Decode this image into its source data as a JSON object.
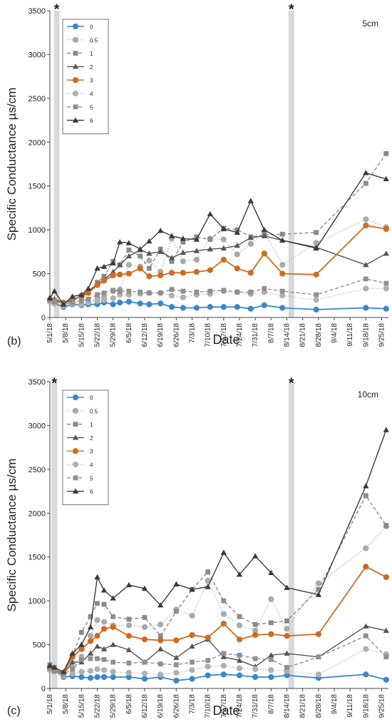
{
  "chart_data": [
    {
      "type": "line",
      "panel_label": "(b)",
      "depth_label": "5cm",
      "xlabel": "Date",
      "ylabel": "Specific Conductance µs/cm",
      "ylim": [
        0,
        3500
      ],
      "yticks": [
        "0",
        "500",
        "1000",
        "1500",
        "2000",
        "2500",
        "3000",
        "3500"
      ],
      "x_date_range": [
        "5/1/18",
        "9/28/18"
      ],
      "xticks": [
        "5/1/18",
        "5/8/18",
        "5/15/18",
        "5/22/18",
        "5/29/18",
        "6/5/18",
        "6/12/18",
        "6/19/18",
        "6/26/18",
        "7/3/18",
        "7/10/18",
        "7/17/18",
        "7/24/18",
        "7/31/18",
        "8/7/18",
        "8/14/18",
        "8/21/18",
        "8/28/18",
        "9/4/18",
        "9/11/18",
        "9/18/18",
        "9/25/18"
      ],
      "event_markers": [
        {
          "date": "5/4/18",
          "symbol": "*"
        },
        {
          "date": "8/16/18",
          "symbol": "*"
        }
      ],
      "legend_position": "top-left",
      "grid": false,
      "x": [
        "5/1/18",
        "5/3/18",
        "5/7/18",
        "5/11/18",
        "5/15/18",
        "5/18/18",
        "5/22/18",
        "5/25/18",
        "5/29/18",
        "6/1/18",
        "6/5/18",
        "6/10/18",
        "6/14/18",
        "6/19/18",
        "6/24/18",
        "6/29/18",
        "7/5/18",
        "7/11/18",
        "7/17/18",
        "7/23/18",
        "7/29/18",
        "8/4/18",
        "8/12/18",
        "8/27/18",
        "9/18/18",
        "9/27/18"
      ],
      "series": [
        {
          "name": "0",
          "color": "#3a87cc",
          "style": "solid",
          "marker": "circle",
          "values": [
            180,
            160,
            120,
            150,
            140,
            150,
            150,
            170,
            150,
            170,
            180,
            160,
            150,
            160,
            120,
            110,
            110,
            120,
            120,
            120,
            100,
            140,
            110,
            90,
            110,
            100
          ]
        },
        {
          "name": "0.5",
          "color": "#a9a9a9",
          "style": "dotted",
          "marker": "circle",
          "values": [
            190,
            170,
            130,
            180,
            150,
            170,
            220,
            230,
            300,
            320,
            600,
            580,
            650,
            520,
            900,
            640,
            660,
            900,
            890,
            720,
            840,
            980,
            600,
            850,
            1120,
            1030
          ]
        },
        {
          "name": "1",
          "color": "#8a8a8a",
          "style": "dashed",
          "marker": "square",
          "values": [
            200,
            190,
            160,
            200,
            250,
            280,
            400,
            470,
            640,
            600,
            770,
            700,
            560,
            780,
            640,
            860,
            920,
            890,
            1020,
            1000,
            920,
            940,
            950,
            970,
            1530,
            1870
          ]
        },
        {
          "name": "2",
          "color": "#555555",
          "style": "solid",
          "marker": "triangle",
          "values": [
            230,
            210,
            170,
            190,
            250,
            300,
            380,
            430,
            520,
            600,
            700,
            770,
            730,
            750,
            680,
            740,
            760,
            780,
            790,
            820,
            910,
            930,
            880,
            800,
            600,
            730
          ]
        },
        {
          "name": "3",
          "color": "#d06a1f",
          "style": "solid",
          "marker": "circle",
          "values": [
            200,
            190,
            170,
            210,
            240,
            280,
            370,
            420,
            480,
            490,
            500,
            560,
            470,
            480,
            510,
            510,
            520,
            540,
            660,
            560,
            510,
            730,
            500,
            490,
            1050,
            1010
          ]
        },
        {
          "name": "4",
          "color": "#b0b0b0",
          "style": "dotted",
          "marker": "circle",
          "values": [
            180,
            160,
            150,
            160,
            150,
            170,
            190,
            200,
            220,
            260,
            260,
            270,
            280,
            280,
            250,
            230,
            260,
            270,
            300,
            290,
            270,
            290,
            250,
            200,
            330,
            330
          ]
        },
        {
          "name": "5",
          "color": "#909090",
          "style": "dashed",
          "marker": "square",
          "values": [
            200,
            180,
            150,
            170,
            190,
            210,
            260,
            280,
            310,
            300,
            300,
            290,
            280,
            280,
            320,
            300,
            290,
            300,
            310,
            290,
            290,
            330,
            300,
            260,
            440,
            390
          ]
        },
        {
          "name": "6",
          "color": "#3a3a3a",
          "style": "solid",
          "marker": "triangle",
          "values": [
            220,
            300,
            150,
            240,
            260,
            330,
            560,
            580,
            620,
            860,
            850,
            780,
            870,
            990,
            930,
            900,
            890,
            1180,
            1010,
            970,
            1330,
            1000,
            880,
            790,
            1650,
            1580
          ]
        }
      ]
    },
    {
      "type": "line",
      "panel_label": "(c)",
      "depth_label": "10cm",
      "xlabel": "Date",
      "ylabel": "Specific Conductance µs/cm",
      "ylim": [
        0,
        3500
      ],
      "yticks": [
        "0",
        "500",
        "1000",
        "1500",
        "2000",
        "2500",
        "3000",
        "3500"
      ],
      "x_date_range": [
        "5/1/18",
        "9/28/18"
      ],
      "xticks": [
        "5/1/18",
        "5/8/18",
        "5/15/18",
        "5/22/18",
        "5/29/18",
        "6/5/18",
        "6/12/18",
        "6/19/18",
        "6/26/18",
        "7/3/18",
        "7/10/18",
        "7/17/18",
        "7/24/18",
        "7/31/18",
        "8/7/18",
        "8/14/18",
        "8/21/18",
        "8/28/18",
        "9/4/18",
        "9/11/18",
        "9/18/18",
        "9/25/18"
      ],
      "event_markers": [
        {
          "date": "5/3/18",
          "symbol": "*"
        },
        {
          "date": "8/16/18",
          "symbol": "*"
        }
      ],
      "legend_position": "top-left",
      "grid": false,
      "x": [
        "5/1/18",
        "5/3/18",
        "5/7/18",
        "5/11/18",
        "5/15/18",
        "5/19/18",
        "5/22/18",
        "5/25/18",
        "5/29/18",
        "6/5/18",
        "6/12/18",
        "6/19/18",
        "6/26/18",
        "7/3/18",
        "7/10/18",
        "7/17/18",
        "7/24/18",
        "7/31/18",
        "8/7/18",
        "8/14/18",
        "8/28/18",
        "9/18/18",
        "9/27/18"
      ],
      "series": [
        {
          "name": "0",
          "color": "#3a87cc",
          "style": "solid",
          "marker": "circle",
          "values": [
            230,
            210,
            130,
            140,
            130,
            120,
            130,
            130,
            130,
            130,
            110,
            130,
            90,
            110,
            150,
            160,
            150,
            130,
            130,
            150,
            120,
            160,
            100
          ]
        },
        {
          "name": "0.5",
          "color": "#a9a9a9",
          "style": "dotted",
          "marker": "circle",
          "values": [
            250,
            220,
            140,
            240,
            360,
            600,
            780,
            760,
            720,
            720,
            700,
            730,
            900,
            830,
            1230,
            850,
            720,
            660,
            1020,
            680,
            1200,
            1600,
            1850
          ]
        },
        {
          "name": "1",
          "color": "#8a8a8a",
          "style": "dashed",
          "marker": "square",
          "values": [
            270,
            240,
            180,
            380,
            640,
            820,
            970,
            960,
            820,
            790,
            810,
            600,
            880,
            1130,
            1330,
            1000,
            820,
            730,
            750,
            770,
            1130,
            2200,
            1860
          ]
        },
        {
          "name": "2",
          "color": "#555555",
          "style": "solid",
          "marker": "triangle",
          "values": [
            250,
            220,
            160,
            300,
            300,
            400,
            480,
            450,
            500,
            440,
            300,
            450,
            350,
            480,
            560,
            360,
            320,
            250,
            380,
            400,
            360,
            710,
            660
          ]
        },
        {
          "name": "3",
          "color": "#d06a1f",
          "style": "solid",
          "marker": "circle",
          "values": [
            240,
            220,
            170,
            360,
            450,
            540,
            600,
            680,
            700,
            600,
            560,
            550,
            550,
            610,
            580,
            740,
            560,
            610,
            620,
            600,
            620,
            1390,
            1270
          ]
        },
        {
          "name": "4",
          "color": "#b0b0b0",
          "style": "dotted",
          "marker": "circle",
          "values": [
            210,
            190,
            150,
            170,
            190,
            200,
            220,
            210,
            190,
            180,
            170,
            160,
            180,
            210,
            250,
            260,
            230,
            220,
            210,
            200,
            160,
            450,
            390
          ]
        },
        {
          "name": "5",
          "color": "#909090",
          "style": "dashed",
          "marker": "square",
          "values": [
            230,
            200,
            160,
            220,
            330,
            340,
            340,
            330,
            300,
            290,
            300,
            280,
            270,
            300,
            320,
            400,
            380,
            340,
            330,
            240,
            360,
            600,
            360
          ]
        },
        {
          "name": "6",
          "color": "#3a3a3a",
          "style": "solid",
          "marker": "triangle",
          "values": [
            260,
            240,
            190,
            400,
            500,
            700,
            1270,
            1120,
            1030,
            1180,
            1140,
            950,
            1190,
            1130,
            1160,
            1550,
            1300,
            1510,
            1320,
            1150,
            1070,
            2310,
            2950
          ]
        }
      ]
    }
  ]
}
